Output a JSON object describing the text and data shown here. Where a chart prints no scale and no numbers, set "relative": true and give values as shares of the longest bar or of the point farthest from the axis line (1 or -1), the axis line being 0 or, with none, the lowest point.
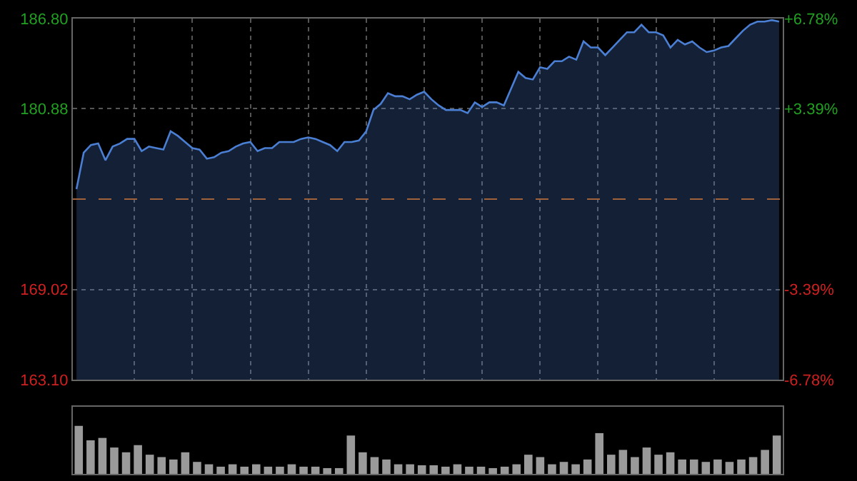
{
  "chart_data": [
    {
      "type": "area",
      "categories": [
        null,
        null,
        null,
        null,
        null,
        null,
        null,
        null,
        null,
        null,
        null,
        null,
        null,
        null,
        null,
        null,
        null,
        null,
        null,
        null,
        null,
        null,
        null,
        null,
        null,
        null,
        null,
        null,
        null,
        null,
        null,
        null,
        null,
        null,
        null,
        null,
        null,
        null,
        null,
        null,
        null,
        null,
        null,
        null,
        null,
        null,
        null,
        null,
        null,
        null,
        null,
        null,
        null,
        null,
        null,
        null,
        null,
        null,
        null,
        null,
        null,
        null,
        null,
        null,
        null,
        null,
        null,
        null,
        null,
        null,
        null,
        null,
        null,
        null,
        null,
        null,
        null,
        null,
        null,
        null,
        null,
        null,
        null,
        null,
        null,
        null,
        null,
        null,
        null,
        null,
        null,
        null,
        null,
        null,
        null,
        null,
        null,
        null
      ],
      "series": [
        {
          "color": "#4a7fd4",
          "values": [
            175.6,
            178.0,
            178.5,
            178.6,
            177.5,
            178.4,
            178.6,
            178.9,
            178.9,
            178.1,
            178.4,
            178.3,
            178.2,
            179.4,
            179.1,
            178.7,
            178.3,
            178.2,
            177.6,
            177.7,
            178.0,
            178.1,
            178.4,
            178.6,
            178.7,
            178.1,
            178.3,
            178.3,
            178.7,
            178.7,
            178.7,
            178.9,
            179.0,
            178.9,
            178.7,
            178.5,
            178.1,
            178.7,
            178.7,
            178.8,
            179.4,
            180.8,
            181.2,
            181.9,
            181.7,
            181.7,
            181.5,
            181.8,
            182.0,
            181.5,
            181.1,
            180.8,
            180.8,
            180.8,
            180.6,
            181.3,
            181.0,
            181.3,
            181.3,
            181.1,
            182.2,
            183.3,
            182.9,
            182.8,
            183.6,
            183.5,
            184.0,
            184.0,
            184.3,
            184.1,
            185.3,
            184.9,
            184.9,
            184.4,
            184.9,
            185.4,
            185.9,
            185.9,
            186.4,
            185.9,
            185.9,
            185.7,
            184.9,
            185.4,
            185.1,
            185.3,
            184.9,
            184.6,
            184.7,
            184.9,
            185.0,
            185.5,
            186.0,
            186.4,
            186.6,
            186.6,
            186.7,
            186.6
          ]
        }
      ],
      "ylim": [
        163.1,
        186.8
      ],
      "yticks": [
        {
          "value": 163.1,
          "label": "163.10"
        },
        169.02,
        180.88,
        {
          "value": 186.8,
          "label": "186.80"
        }
      ],
      "y2lim": [
        -6.78,
        6.78
      ],
      "y2ticks": [
        {
          "value": -6.78,
          "label": "-6.78%"
        },
        {
          "value": -3.39,
          "label": "-3.39%"
        },
        {
          "value": 3.39,
          "label": "+3.39%"
        },
        {
          "value": 6.78,
          "label": "+6.78%"
        }
      ],
      "ref_lines": [
        {
          "axis": "y",
          "value": 174.95,
          "color": "#a0623a",
          "line_style": "dashed"
        }
      ],
      "grid": true,
      "tick_labels": "y",
      "legend": false
    },
    {
      "type": "bar",
      "relative": true,
      "categories": [
        null,
        null,
        null,
        null,
        null,
        null,
        null,
        null,
        null,
        null,
        null,
        null,
        null,
        null,
        null,
        null,
        null,
        null,
        null,
        null,
        null,
        null,
        null,
        null,
        null,
        null,
        null,
        null,
        null,
        null,
        null,
        null,
        null,
        null,
        null,
        null,
        null,
        null,
        null,
        null,
        null,
        null,
        null,
        null,
        null,
        null,
        null,
        null,
        null,
        null,
        null,
        null,
        null,
        null,
        null,
        null,
        null,
        null,
        null,
        null
      ],
      "series": [
        {
          "color": "#9a9a9a",
          "values": [
            1,
            0.7,
            0.75,
            0.55,
            0.45,
            0.6,
            0.4,
            0.35,
            0.3,
            0.45,
            0.25,
            0.2,
            0.15,
            0.2,
            0.15,
            0.2,
            0.15,
            0.15,
            0.2,
            0.15,
            0.15,
            0.12,
            0.12,
            0.8,
            0.45,
            0.35,
            0.3,
            0.2,
            0.2,
            0.18,
            0.18,
            0.15,
            0.2,
            0.15,
            0.15,
            0.12,
            0.15,
            0.2,
            0.4,
            0.35,
            0.2,
            0.25,
            0.2,
            0.3,
            0.85,
            0.4,
            0.5,
            0.35,
            0.55,
            0.4,
            0.45,
            0.3,
            0.3,
            0.25,
            0.3,
            0.25,
            0.3,
            0.35,
            0.5,
            0.8
          ]
        }
      ],
      "tick_labels": false,
      "legend": false
    }
  ]
}
